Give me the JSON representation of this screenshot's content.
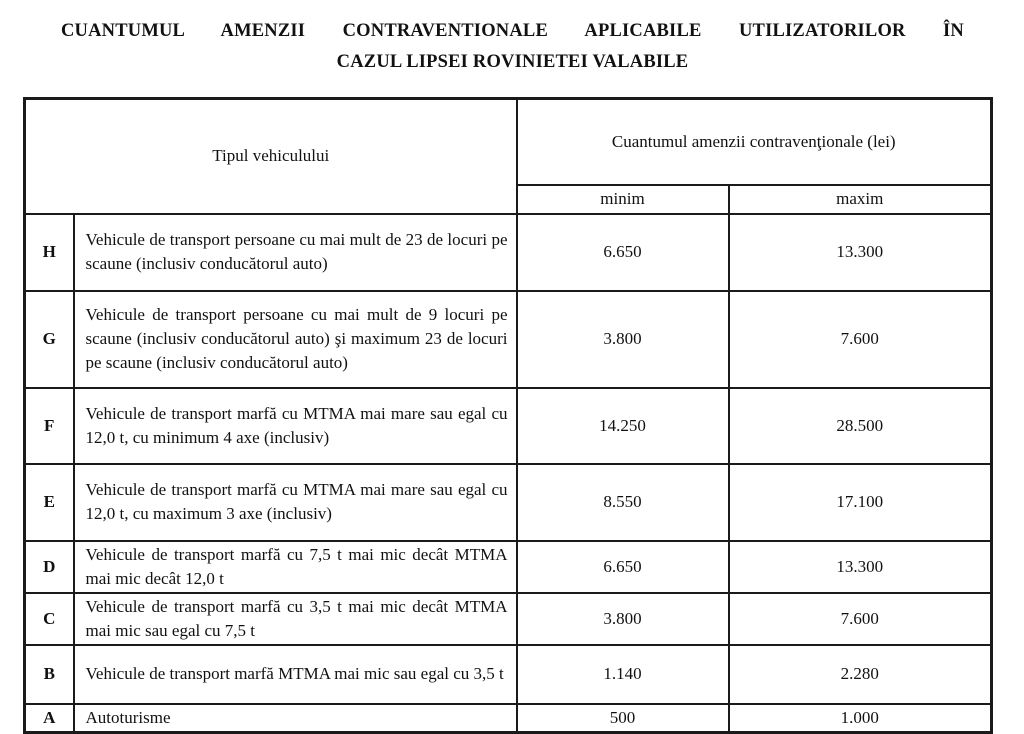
{
  "title": {
    "line1": "CUANTUMUL AMENZII CONTRAVENTIONALE APLICABILE UTILIZATORILOR ÎN",
    "line2": "CAZUL LIPSEI ROVINIETEI VALABILE"
  },
  "table": {
    "header": {
      "vehicle_type": "Tipul vehiculului",
      "fine_amount": "Cuantumul amenzii contravenţionale (lei)",
      "min": "minim",
      "max": "maxim"
    },
    "rows": [
      {
        "code": "H",
        "description": "Vehicule de transport persoane cu mai mult de 23 de locuri pe scaune (inclusiv conducătorul auto)",
        "min": "6.650",
        "max": "13.300"
      },
      {
        "code": "G",
        "description": "Vehicule de transport persoane cu mai mult de 9 locuri pe scaune (inclusiv conducătorul auto) şi maximum 23 de locuri pe scaune (inclusiv conducătorul auto)",
        "min": "3.800",
        "max": "7.600"
      },
      {
        "code": "F",
        "description": "Vehicule de transport marfă cu MTMA mai mare sau egal cu 12,0 t, cu minimum 4 axe (inclusiv)",
        "min": "14.250",
        "max": "28.500"
      },
      {
        "code": "E",
        "description": "Vehicule de transport marfă cu MTMA mai mare sau egal cu 12,0 t, cu maximum 3 axe (inclusiv)",
        "min": "8.550",
        "max": "17.100"
      },
      {
        "code": "D",
        "description": "Vehicule de transport marfă cu 7,5 t mai mic decât MTMA mai mic decât 12,0 t",
        "min": "6.650",
        "max": "13.300"
      },
      {
        "code": "C",
        "description": "Vehicule de transport marfă cu 3,5 t mai mic decât MTMA mai mic sau egal cu 7,5 t",
        "min": "3.800",
        "max": "7.600"
      },
      {
        "code": "B",
        "description": "Vehicule de transport marfă MTMA mai mic sau egal cu 3,5 t",
        "min": "1.140",
        "max": "2.280"
      },
      {
        "code": "A",
        "description": "Autoturisme",
        "min": "500",
        "max": "1.000"
      }
    ],
    "border_color": "#1a1a1a",
    "text_color": "#111111"
  }
}
